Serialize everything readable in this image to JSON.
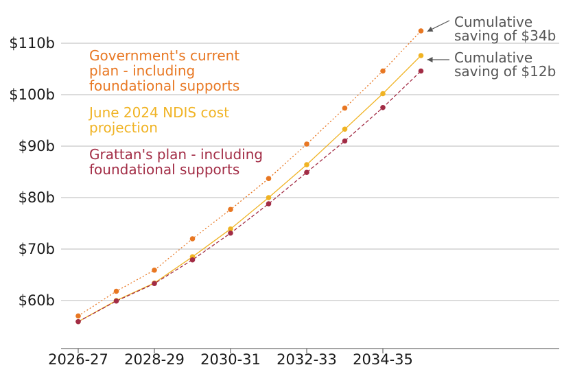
{
  "chart_data": {
    "type": "line",
    "x": [
      "2026-27",
      "2027-28",
      "2028-29",
      "2029-30",
      "2030-31",
      "2031-32",
      "2032-33",
      "2033-34",
      "2034-35",
      "2035-36"
    ],
    "x_tick_labels": [
      "2026-27",
      "2028-29",
      "2030-31",
      "2032-33",
      "2034-35"
    ],
    "y_tick_labels": [
      "$60b",
      "$70b",
      "$80b",
      "$90b",
      "$100b",
      "$110b"
    ],
    "ylim": [
      54,
      114
    ],
    "grid": true,
    "series": [
      {
        "name": "Government's current plan - including foundational supports",
        "color": "#e87722",
        "dash": "2,3",
        "values": [
          57.0,
          61.8,
          65.9,
          72.0,
          77.7,
          83.7,
          90.4,
          97.4,
          104.6,
          112.4
        ]
      },
      {
        "name": "June 2024 NDIS cost projection",
        "color": "#f0b323",
        "dash": "",
        "values": [
          55.9,
          60.0,
          63.4,
          68.5,
          73.9,
          80.0,
          86.4,
          93.3,
          100.2,
          107.6
        ]
      },
      {
        "name": "Grattan's plan - including foundational supports",
        "color": "#a22c45",
        "dash": "5,3",
        "values": [
          55.9,
          59.9,
          63.3,
          67.9,
          73.1,
          78.8,
          84.9,
          91.0,
          97.5,
          104.6
        ]
      }
    ],
    "annotations": [
      {
        "text_line1": "Cumulative",
        "text_line2": "saving of $34b"
      },
      {
        "text_line1": "Cumulative",
        "text_line2": "saving of $12b"
      }
    ]
  }
}
